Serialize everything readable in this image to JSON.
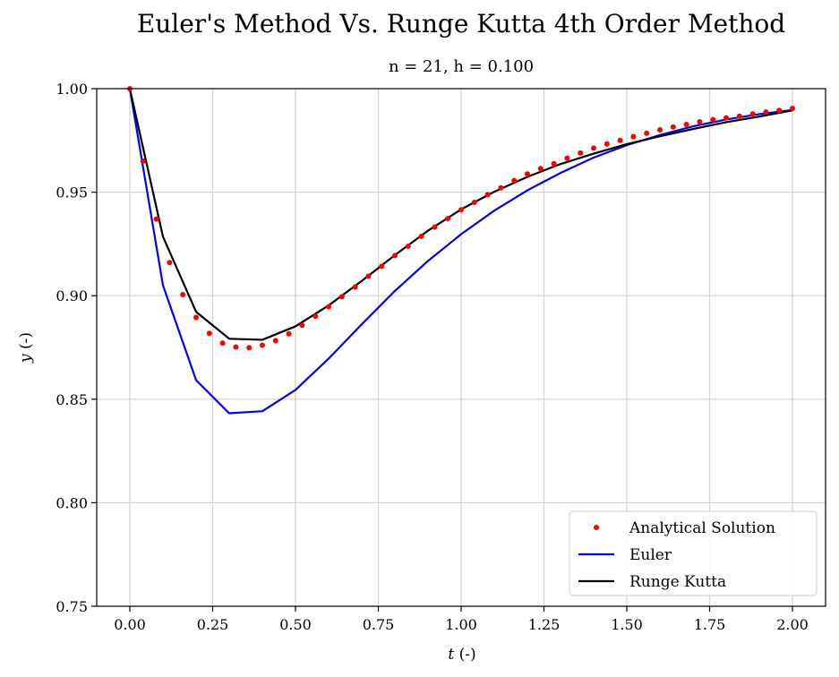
{
  "chart_data": {
    "type": "line",
    "title": "Euler's Method Vs. Runge Kutta 4th Order Method",
    "subtitle": "n = 21, h = 0.100",
    "xlabel_var": "t",
    "xlabel_unit": "(-)",
    "ylabel_var": "y",
    "ylabel_unit": "(-)",
    "xlim": [
      -0.1,
      2.1
    ],
    "ylim": [
      0.75,
      1.0
    ],
    "xticks": [
      0.0,
      0.25,
      0.5,
      0.75,
      1.0,
      1.25,
      1.5,
      1.75,
      2.0
    ],
    "xtick_labels": [
      "0.00",
      "0.25",
      "0.50",
      "0.75",
      "1.00",
      "1.25",
      "1.50",
      "1.75",
      "2.00"
    ],
    "yticks": [
      0.75,
      0.8,
      0.85,
      0.9,
      0.95,
      1.0
    ],
    "ytick_labels": [
      "0.75",
      "0.80",
      "0.85",
      "0.90",
      "0.95",
      "1.00"
    ],
    "grid": true,
    "legend_position": "bottom-right",
    "series": [
      {
        "name": "Analytical Solution",
        "style": "dots",
        "color": "#ff0000",
        "x": [
          0.0,
          0.04,
          0.08,
          0.12,
          0.16,
          0.2,
          0.24,
          0.28,
          0.32,
          0.36,
          0.4,
          0.44,
          0.48,
          0.52,
          0.56,
          0.6,
          0.64,
          0.68,
          0.72,
          0.76,
          0.8,
          0.84,
          0.88,
          0.92,
          0.96,
          1.0,
          1.04,
          1.08,
          1.12,
          1.16,
          1.2,
          1.24,
          1.28,
          1.32,
          1.36,
          1.4,
          1.44,
          1.48,
          1.52,
          1.56,
          1.6,
          1.64,
          1.68,
          1.72,
          1.76,
          1.8,
          1.84,
          1.88,
          1.92,
          1.96,
          2.0
        ],
        "y": [
          1.0,
          0.965,
          0.937,
          0.916,
          0.9005,
          0.8895,
          0.8818,
          0.8771,
          0.8752,
          0.8749,
          0.8761,
          0.8783,
          0.8816,
          0.8857,
          0.8901,
          0.8947,
          0.8995,
          0.9042,
          0.9094,
          0.9142,
          0.9194,
          0.9239,
          0.9287,
          0.9331,
          0.9373,
          0.9415,
          0.9451,
          0.9488,
          0.9521,
          0.9556,
          0.9588,
          0.9614,
          0.9638,
          0.9664,
          0.9689,
          0.9713,
          0.9733,
          0.975,
          0.9768,
          0.9785,
          0.9801,
          0.9815,
          0.9827,
          0.984,
          0.985,
          0.9859,
          0.9867,
          0.9878,
          0.9887,
          0.9895,
          0.9905
        ]
      },
      {
        "name": "Euler",
        "style": "line",
        "color": "#0000ff",
        "x": [
          0.0,
          0.1,
          0.2,
          0.3,
          0.4,
          0.5,
          0.6,
          0.7,
          0.8,
          0.9,
          1.0,
          1.1,
          1.2,
          1.3,
          1.4,
          1.5,
          1.6,
          1.7,
          1.8,
          1.9,
          2.0
        ],
        "y": [
          1.0,
          0.905,
          0.8592,
          0.8432,
          0.8442,
          0.8545,
          0.8696,
          0.8862,
          0.9023,
          0.9168,
          0.9297,
          0.9411,
          0.9509,
          0.9593,
          0.9667,
          0.9727,
          0.9776,
          0.9818,
          0.9851,
          0.9877,
          0.9897
        ]
      },
      {
        "name": "Runge Kutta",
        "style": "line",
        "color": "#000000",
        "x": [
          0.0,
          0.1,
          0.2,
          0.3,
          0.4,
          0.5,
          0.6,
          0.7,
          0.8,
          0.9,
          1.0,
          1.1,
          1.2,
          1.3,
          1.4,
          1.5,
          1.6,
          1.7,
          1.8,
          1.9,
          2.0
        ],
        "y": [
          1.0,
          0.9285,
          0.8922,
          0.8792,
          0.8787,
          0.8852,
          0.8953,
          0.9071,
          0.9196,
          0.9314,
          0.9417,
          0.9502,
          0.9574,
          0.9636,
          0.9686,
          0.9732,
          0.977,
          0.9805,
          0.9838,
          0.9865,
          0.9895
        ]
      }
    ]
  }
}
